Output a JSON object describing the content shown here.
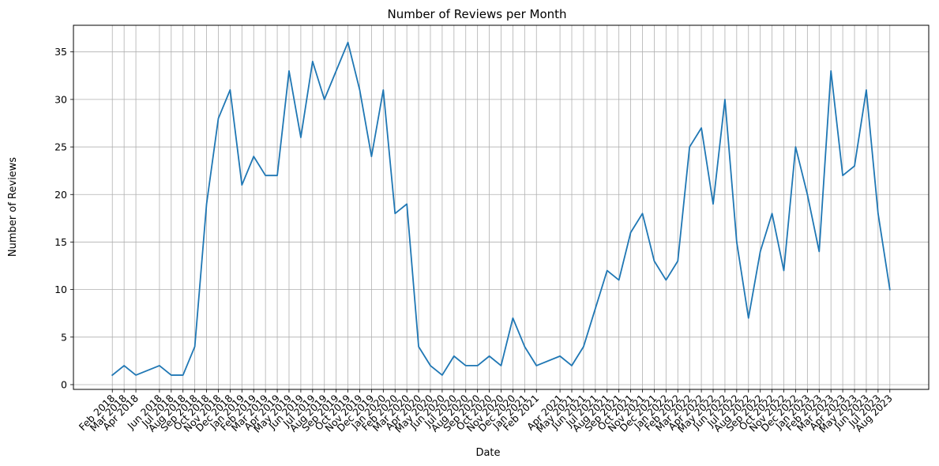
{
  "chart_data": {
    "type": "line",
    "title": "Number of Reviews per Month",
    "xlabel": "Date",
    "ylabel": "Number of Reviews",
    "grid": true,
    "ylim": [
      -0.5,
      37.8
    ],
    "yticks": [
      0,
      5,
      10,
      15,
      20,
      25,
      30,
      35
    ],
    "line_color": "#1f77b4",
    "series": [
      {
        "points": [
          {
            "x": "2018-02",
            "label": "Feb 2018",
            "y": 1
          },
          {
            "x": "2018-03",
            "label": "Mar 2018",
            "y": 2
          },
          {
            "x": "2018-04",
            "label": "Apr 2018",
            "y": 1
          },
          {
            "x": "2018-06",
            "label": "Jun 2018",
            "y": 2
          },
          {
            "x": "2018-07",
            "label": "Jul 2018",
            "y": 1
          },
          {
            "x": "2018-08",
            "label": "Aug 2018",
            "y": 1
          },
          {
            "x": "2018-09",
            "label": "Sep 2018",
            "y": 4
          },
          {
            "x": "2018-10",
            "label": "Oct 2018",
            "y": 19
          },
          {
            "x": "2018-11",
            "label": "Nov 2018",
            "y": 28
          },
          {
            "x": "2018-12",
            "label": "Dec 2018",
            "y": 31
          },
          {
            "x": "2019-01",
            "label": "Jan 2019",
            "y": 21
          },
          {
            "x": "2019-02",
            "label": "Feb 2019",
            "y": 24
          },
          {
            "x": "2019-03",
            "label": "Mar 2019",
            "y": 22
          },
          {
            "x": "2019-04",
            "label": "Apr 2019",
            "y": 22
          },
          {
            "x": "2019-05",
            "label": "May 2019",
            "y": 33
          },
          {
            "x": "2019-06",
            "label": "Jun 2019",
            "y": 26
          },
          {
            "x": "2019-07",
            "label": "Jul 2019",
            "y": 34
          },
          {
            "x": "2019-08",
            "label": "Aug 2019",
            "y": 30
          },
          {
            "x": "2019-09",
            "label": "Sep 2019",
            "y": 33
          },
          {
            "x": "2019-10",
            "label": "Oct 2019",
            "y": 36
          },
          {
            "x": "2019-11",
            "label": "Nov 2019",
            "y": 31
          },
          {
            "x": "2019-12",
            "label": "Dec 2019",
            "y": 24
          },
          {
            "x": "2020-01",
            "label": "Jan 2020",
            "y": 31
          },
          {
            "x": "2020-02",
            "label": "Feb 2020",
            "y": 18
          },
          {
            "x": "2020-03",
            "label": "Mar 2020",
            "y": 19
          },
          {
            "x": "2020-04",
            "label": "Apr 2020",
            "y": 4
          },
          {
            "x": "2020-05",
            "label": "May 2020",
            "y": 2
          },
          {
            "x": "2020-06",
            "label": "Jun 2020",
            "y": 1
          },
          {
            "x": "2020-07",
            "label": "Jul 2020",
            "y": 3
          },
          {
            "x": "2020-08",
            "label": "Aug 2020",
            "y": 2
          },
          {
            "x": "2020-09",
            "label": "Sep 2020",
            "y": 2
          },
          {
            "x": "2020-10",
            "label": "Oct 2020",
            "y": 3
          },
          {
            "x": "2020-11",
            "label": "Nov 2020",
            "y": 2
          },
          {
            "x": "2020-12",
            "label": "Dec 2020",
            "y": 7
          },
          {
            "x": "2021-01",
            "label": "Jan 2021",
            "y": 4
          },
          {
            "x": "2021-02",
            "label": "Feb 2021",
            "y": 2
          },
          {
            "x": "2021-04",
            "label": "Apr 2021",
            "y": 3
          },
          {
            "x": "2021-05",
            "label": "May 2021",
            "y": 2
          },
          {
            "x": "2021-06",
            "label": "Jun 2021",
            "y": 4
          },
          {
            "x": "2021-07",
            "label": "Jul 2021",
            "y": 8
          },
          {
            "x": "2021-08",
            "label": "Aug 2021",
            "y": 12
          },
          {
            "x": "2021-09",
            "label": "Sep 2021",
            "y": 11
          },
          {
            "x": "2021-10",
            "label": "Oct 2021",
            "y": 16
          },
          {
            "x": "2021-11",
            "label": "Nov 2021",
            "y": 18
          },
          {
            "x": "2021-12",
            "label": "Dec 2021",
            "y": 13
          },
          {
            "x": "2022-01",
            "label": "Jan 2022",
            "y": 11
          },
          {
            "x": "2022-02",
            "label": "Feb 2022",
            "y": 13
          },
          {
            "x": "2022-03",
            "label": "Mar 2022",
            "y": 25
          },
          {
            "x": "2022-04",
            "label": "Apr 2022",
            "y": 27
          },
          {
            "x": "2022-05",
            "label": "May 2022",
            "y": 19
          },
          {
            "x": "2022-06",
            "label": "Jun 2022",
            "y": 30
          },
          {
            "x": "2022-07",
            "label": "Jul 2022",
            "y": 15
          },
          {
            "x": "2022-08",
            "label": "Aug 2022",
            "y": 7
          },
          {
            "x": "2022-09",
            "label": "Sep 2022",
            "y": 14
          },
          {
            "x": "2022-10",
            "label": "Oct 2022",
            "y": 18
          },
          {
            "x": "2022-11",
            "label": "Nov 2022",
            "y": 12
          },
          {
            "x": "2022-12",
            "label": "Dec 2022",
            "y": 25
          },
          {
            "x": "2023-01",
            "label": "Jan 2023",
            "y": 20
          },
          {
            "x": "2023-02",
            "label": "Feb 2023",
            "y": 14
          },
          {
            "x": "2023-03",
            "label": "Mar 2023",
            "y": 33
          },
          {
            "x": "2023-04",
            "label": "Apr 2023",
            "y": 22
          },
          {
            "x": "2023-05",
            "label": "May 2023",
            "y": 23
          },
          {
            "x": "2023-06",
            "label": "Jun 2023",
            "y": 31
          },
          {
            "x": "2023-07",
            "label": "Jul 2023",
            "y": 18
          },
          {
            "x": "2023-08",
            "label": "Aug 2023",
            "y": 10
          }
        ]
      }
    ]
  }
}
